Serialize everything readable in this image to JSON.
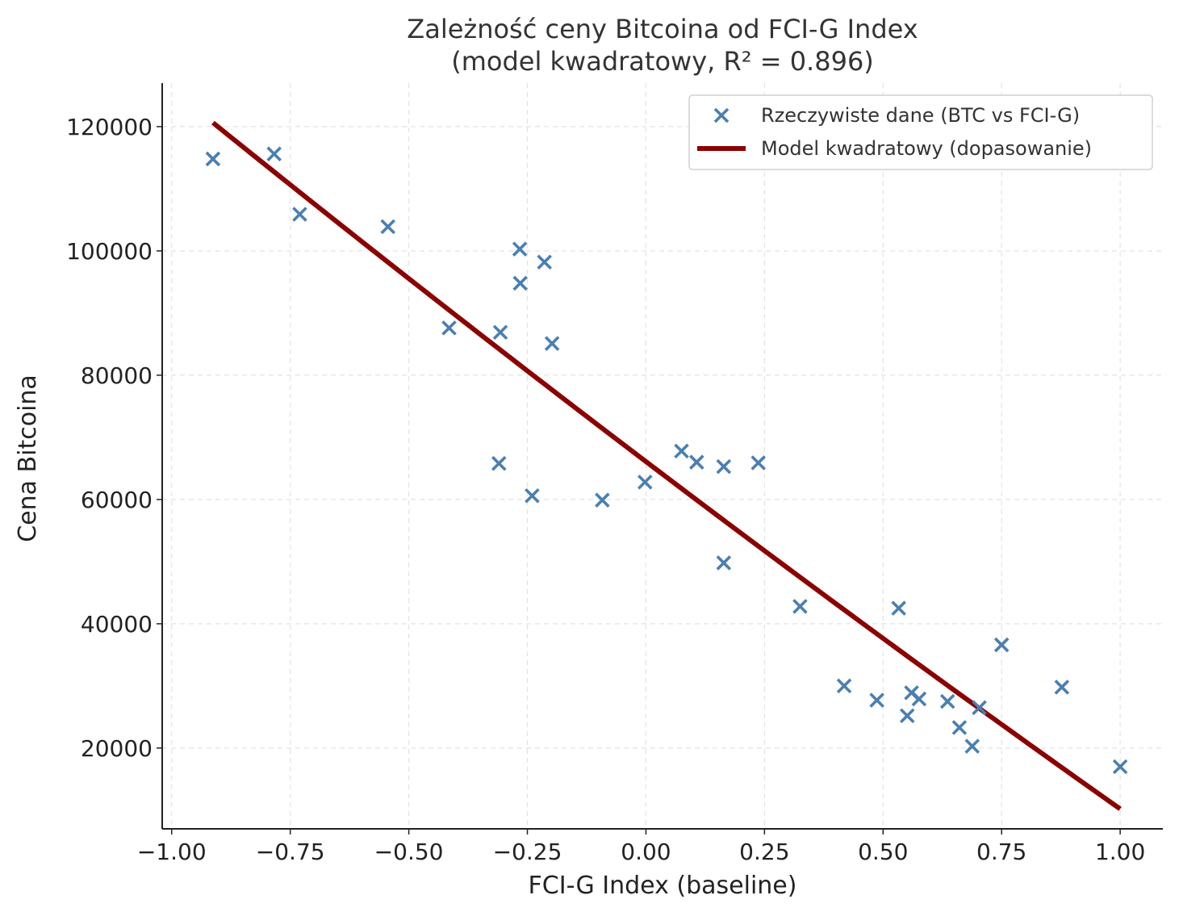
{
  "chart_data": {
    "type": "scatter",
    "title": "Zależność ceny Bitcoina od FCI-G Index",
    "subtitle": "(model kwadratowy, R² = 0.896)",
    "xlabel": "FCI-G Index (baseline)",
    "ylabel": "Cena Bitcoina",
    "xlim": [
      -1.02,
      1.09
    ],
    "ylim": [
      7000,
      127000
    ],
    "x_ticks": [
      -1.0,
      -0.75,
      -0.5,
      -0.25,
      0.0,
      0.25,
      0.5,
      0.75,
      1.0
    ],
    "x_tick_labels": [
      "−1.00",
      "−0.75",
      "−0.50",
      "−0.25",
      "0.00",
      "0.25",
      "0.50",
      "0.75",
      "1.00"
    ],
    "y_ticks": [
      20000,
      40000,
      60000,
      80000,
      100000,
      120000
    ],
    "y_tick_labels": [
      "20000",
      "40000",
      "60000",
      "80000",
      "100000",
      "120000"
    ],
    "grid": true,
    "legend_position": "top-right",
    "series": [
      {
        "name": "Rzeczywiste dane (BTC vs FCI-G)",
        "type": "scatter",
        "color": "#4a7fb0",
        "marker": "x",
        "points": [
          [
            -0.913,
            114800
          ],
          [
            -0.784,
            115600
          ],
          [
            -0.73,
            105900
          ],
          [
            -0.544,
            103900
          ],
          [
            -0.415,
            87600
          ],
          [
            -0.307,
            86900
          ],
          [
            -0.266,
            100300
          ],
          [
            -0.265,
            94800
          ],
          [
            -0.214,
            98200
          ],
          [
            -0.198,
            85100
          ],
          [
            -0.31,
            65800
          ],
          [
            -0.24,
            60600
          ],
          [
            -0.092,
            59900
          ],
          [
            -0.002,
            62800
          ],
          [
            0.075,
            67800
          ],
          [
            0.107,
            66000
          ],
          [
            0.164,
            65300
          ],
          [
            0.237,
            65900
          ],
          [
            0.164,
            49800
          ],
          [
            0.325,
            42800
          ],
          [
            0.418,
            30000
          ],
          [
            0.487,
            27700
          ],
          [
            0.533,
            42500
          ],
          [
            0.551,
            25200
          ],
          [
            0.56,
            28900
          ],
          [
            0.576,
            27900
          ],
          [
            0.636,
            27500
          ],
          [
            0.661,
            23300
          ],
          [
            0.688,
            20300
          ],
          [
            0.703,
            26500
          ],
          [
            0.75,
            36600
          ],
          [
            0.877,
            29800
          ],
          [
            1.0,
            17000
          ]
        ]
      },
      {
        "name": "Model kwadratowy (dopasowanie)",
        "type": "line",
        "color": "#8b0000",
        "coefficients": {
          "a": 2000,
          "b": -57900,
          "c": 66100
        },
        "x_range": [
          -0.913,
          1.0
        ]
      }
    ]
  }
}
